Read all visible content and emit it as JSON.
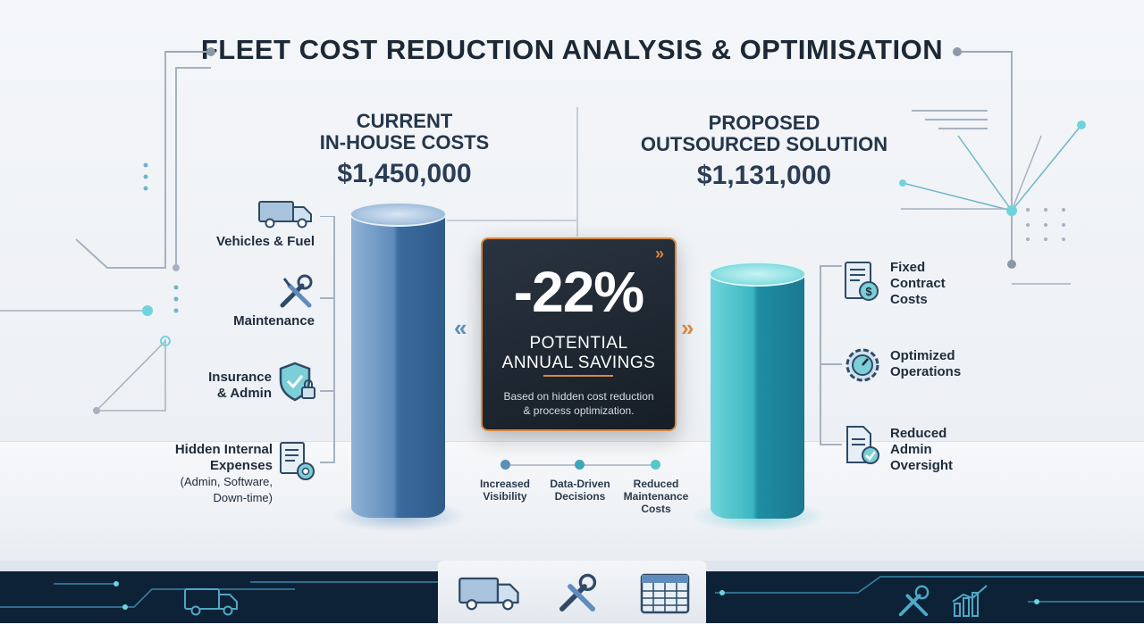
{
  "title": "FLEET COST REDUCTION ANALYSIS & OPTIMISATION",
  "current": {
    "heading_line1": "CURRENT",
    "heading_line2": "IN-HOUSE COSTS",
    "amount": "$1,450,000",
    "items": [
      {
        "label": "Vehicles & Fuel",
        "icon": "truck-icon"
      },
      {
        "label": "Maintenance",
        "icon": "wrench-screwdriver-icon"
      },
      {
        "label_line1": "Insurance",
        "label_line2": "& Admin",
        "icon": "shield-check-lock-icon"
      },
      {
        "label_line1": "Hidden Internal",
        "label_line2": "Expenses",
        "sub_line1": "(Admin, Software,",
        "sub_line2": "Down-time)",
        "icon": "document-gear-icon"
      }
    ]
  },
  "proposed": {
    "heading_line1": "PROPOSED",
    "heading_line2": "OUTSOURCED SOLUTION",
    "amount": "$1,131,000",
    "items": [
      {
        "label_line1": "Fixed",
        "label_line2": "Contract",
        "label_line3": "Costs",
        "icon": "contract-dollar-icon"
      },
      {
        "label_line1": "Optimized",
        "label_line2": "Operations",
        "icon": "gear-gauge-icon"
      },
      {
        "label_line1": "Reduced",
        "label_line2": "Admin",
        "label_line3": "Oversight",
        "icon": "document-check-icon"
      }
    ]
  },
  "savings": {
    "percent": "-22%",
    "line1": "POTENTIAL",
    "line2": "ANNUAL SAVINGS",
    "note_line1": "Based on hidden cost reduction",
    "note_line2": "& process optimization."
  },
  "benefits": [
    {
      "line1": "Increased",
      "line2": "Visibility",
      "color": "#5a8fb8"
    },
    {
      "line1": "Data-Driven",
      "line2": "Decisions",
      "color": "#3fa6b8"
    },
    {
      "line1": "Reduced",
      "line2": "Maintenance",
      "line3": "Costs",
      "color": "#56c7cc"
    }
  ],
  "colors": {
    "accent_orange": "#d8893f",
    "left_cylinder": "#3a6b9e",
    "right_cylinder": "#1f8ea3",
    "footer": "#0e2237"
  },
  "footer_icons": [
    "truck-icon",
    "wrench-screwdriver-icon",
    "calendar-grid-icon",
    "tools-icon",
    "bar-chart-icon"
  ]
}
